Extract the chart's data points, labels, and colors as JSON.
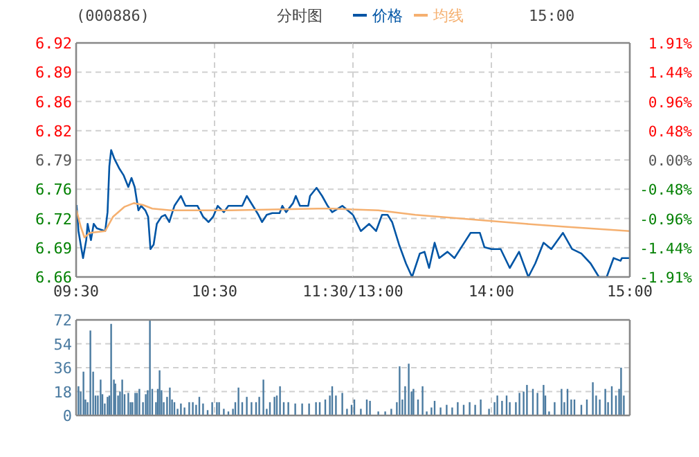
{
  "chart_data": [
    {
      "type": "line",
      "title": "(000886)",
      "subtitle": "分时图",
      "annotations": [
        "15:00"
      ],
      "legend": "top",
      "grid": true,
      "xlim": [
        9.5,
        11.5
      ],
      "xticks": [
        {
          "value": 9.5,
          "label": "09:30"
        },
        {
          "value": 10.5,
          "label": "10:30"
        },
        {
          "value": 11.5,
          "label": "11:30/13:00"
        }
      ],
      "ylim": [
        6.66,
        6.92
      ],
      "yticks": [
        {
          "value": 6.66,
          "label": "6.66"
        },
        {
          "value": 6.6925,
          "label": "6.69"
        },
        {
          "value": 6.725,
          "label": "6.72"
        },
        {
          "value": 6.7575,
          "label": "6.76"
        },
        {
          "value": 6.79,
          "label": "6.79"
        },
        {
          "value": 6.8225,
          "label": "6.82"
        },
        {
          "value": 6.855,
          "label": "6.86"
        },
        {
          "value": 6.8875,
          "label": "6.89"
        },
        {
          "value": 6.92,
          "label": "6.92"
        }
      ],
      "series": [
        {
          "name": "价格",
          "color": "#0055a5",
          "x": [
            9.503,
            9.517,
            9.533,
            9.55,
            9.573,
            9.583,
            9.607,
            9.627,
            9.65,
            9.71,
            9.727,
            9.74,
            9.753,
            9.777,
            9.81,
            9.843,
            9.877,
            9.9,
            9.923,
            9.95,
            9.97,
            10,
            10.02,
            10.037,
            10.06,
            10.083,
            10.117,
            10.143,
            10.173,
            10.21,
            10.257,
            10.29,
            10.377,
            10.417,
            10.457,
            10.49,
            10.523,
            10.567,
            10.6,
            10.7,
            10.733,
            10.777,
            10.817,
            10.843,
            10.877,
            10.917,
            10.97,
            10.99,
            11.017,
            11.067,
            11.087,
            11.117,
            11.177,
            11.19,
            11.237,
            11.277,
            11.317,
            11.35,
            11.423,
            11.5
          ],
          "values": [
            6.74,
            6.711,
            6.696,
            6.681,
            6.701,
            6.719,
            6.701,
            6.719,
            6.714,
            6.711,
            6.732,
            6.783,
            6.801,
            6.791,
            6.781,
            6.773,
            6.76,
            6.77,
            6.76,
            6.734,
            6.739,
            6.734,
            6.727,
            6.691,
            6.696,
            6.719,
            6.727,
            6.729,
            6.721,
            6.739,
            6.75,
            6.739,
            6.739,
            6.727,
            6.721,
            6.727,
            6.739,
            6.732,
            6.739,
            6.739,
            6.75,
            6.739,
            6.729,
            6.721,
            6.729,
            6.731,
            6.731,
            6.739,
            6.732,
            6.742,
            6.75,
            6.739,
            6.739,
            6.75,
            6.759,
            6.75,
            6.739,
            6.732,
            6.739,
            6.729
          ]
        },
        {
          "name": "均线",
          "color": "#f5b070",
          "x": [
            9.503,
            9.533,
            9.56,
            9.6,
            9.71,
            9.767,
            9.85,
            9.917,
            9.983,
            10.05,
            10.183,
            10.25,
            10.617,
            11.25,
            11.35,
            11.5
          ],
          "values": [
            6.734,
            6.716,
            6.704,
            6.709,
            6.711,
            6.727,
            6.738,
            6.742,
            6.74,
            6.736,
            6.734,
            6.734,
            6.734,
            6.736,
            6.736,
            6.735
          ]
        }
      ]
    },
    {
      "type": "line",
      "grid": true,
      "tick_labels": "x",
      "xlim": [
        13,
        15
      ],
      "xticks": [
        {
          "value": 13,
          "label": null
        },
        {
          "value": 14,
          "label": "14:00"
        },
        {
          "value": 15,
          "label": "15:00"
        }
      ],
      "ylim": [
        6.66,
        6.92
      ],
      "yticks": [
        {
          "value": 6.66,
          "label": null
        },
        {
          "value": 6.6925,
          "label": null
        },
        {
          "value": 6.725,
          "label": null
        },
        {
          "value": 6.7575,
          "label": null
        },
        {
          "value": 6.79,
          "label": null
        },
        {
          "value": 6.8225,
          "label": null
        },
        {
          "value": 6.855,
          "label": null
        },
        {
          "value": 6.8875,
          "label": null
        },
        {
          "value": 6.92,
          "label": null
        }
      ],
      "y2lim": [
        -1.914,
        1.914
      ],
      "y2ticks": [
        {
          "value": -1.914,
          "label": "-1.91%"
        },
        {
          "value": -1.4355,
          "label": "-1.44%"
        },
        {
          "value": -0.957,
          "label": "-0.96%"
        },
        {
          "value": -0.4785,
          "label": "-0.48%"
        },
        {
          "value": 0,
          "label": "0.00%"
        },
        {
          "value": 0.4785,
          "label": "0.48%"
        },
        {
          "value": 0.957,
          "label": "0.96%"
        },
        {
          "value": 1.4355,
          "label": "1.44%"
        },
        {
          "value": 1.914,
          "label": "1.91%"
        }
      ],
      "series": [
        {
          "color": "#0055a5",
          "x": [
            13,
            13.057,
            13.117,
            13.167,
            13.21,
            13.25,
            13.283,
            13.333,
            13.383,
            13.427,
            13.483,
            13.517,
            13.55,
            13.59,
            13.623,
            13.683,
            13.733,
            13.783,
            13.85,
            13.917,
            13.95,
            14,
            14.067,
            14.133,
            14.2,
            14.267,
            14.317,
            14.377,
            14.433,
            14.517,
            14.583,
            14.65,
            14.717,
            14.777,
            14.833,
            14.883,
            14.933,
            14.943,
            15
          ],
          "values": [
            6.729,
            6.711,
            6.719,
            6.711,
            6.729,
            6.729,
            6.721,
            6.696,
            6.675,
            6.66,
            6.686,
            6.688,
            6.67,
            6.698,
            6.681,
            6.688,
            6.681,
            6.693,
            6.709,
            6.709,
            6.693,
            6.691,
            6.691,
            6.67,
            6.688,
            6.66,
            6.675,
            6.698,
            6.691,
            6.709,
            6.691,
            6.686,
            6.675,
            6.66,
            6.66,
            6.681,
            6.678,
            6.681,
            6.681
          ]
        },
        {
          "color": "#f5b070",
          "x": [
            13,
            13.183,
            13.45,
            13.85,
            14.25,
            14.517,
            15
          ],
          "values": [
            6.735,
            6.734,
            6.729,
            6.724,
            6.719,
            6.716,
            6.711
          ]
        }
      ]
    },
    {
      "type": "bar",
      "grid": true,
      "tick_labels": "y",
      "xlim": [
        9.5,
        11.5
      ],
      "xticks": [
        {
          "value": 9.5,
          "label": null
        },
        {
          "value": 10.5,
          "label": null
        },
        {
          "value": 11.5,
          "label": null
        }
      ],
      "ylim": [
        0,
        72
      ],
      "yticks": [
        0,
        18,
        36,
        54,
        72
      ],
      "series": [
        {
          "color": "#4a7aa0",
          "x": [
            9.517,
            9.533,
            9.553,
            9.567,
            9.583,
            9.603,
            9.623,
            9.64,
            9.657,
            9.677,
            9.69,
            9.707,
            9.727,
            9.74,
            9.753,
            9.773,
            9.783,
            9.803,
            9.817,
            9.833,
            9.85,
            9.877,
            9.893,
            9.907,
            9.927,
            9.94,
            9.957,
            9.983,
            10.003,
            10.017,
            10.033,
            10.05,
            10.077,
            10.09,
            10.103,
            10.117,
            10.133,
            10.157,
            10.177,
            10.193,
            10.21,
            10.233,
            10.257,
            10.283,
            10.317,
            10.343,
            10.367,
            10.39,
            10.417,
            10.45,
            10.483,
            10.517,
            10.533,
            10.567,
            10.6,
            10.633,
            10.65,
            10.673,
            10.7,
            10.733,
            10.767,
            10.8,
            10.823,
            10.853,
            10.877,
            10.9,
            10.933,
            10.95,
            10.973,
            11,
            11.033,
            11.083,
            11.133,
            11.183,
            11.233,
            11.26,
            11.3,
            11.333,
            11.35,
            11.377,
            11.423,
            11.457,
            11.49
          ],
          "values": [
            22,
            18,
            33,
            12,
            10,
            64,
            33,
            15,
            15,
            27,
            16,
            9,
            14,
            15,
            69,
            27,
            24,
            15,
            18,
            27,
            16,
            17,
            10,
            10,
            17,
            17,
            20,
            10,
            16,
            19,
            72,
            20,
            10,
            20,
            34,
            19,
            10,
            14,
            21,
            12,
            10,
            5,
            9,
            6,
            10,
            10,
            8,
            14,
            9,
            4,
            10,
            10,
            10,
            5,
            3,
            5,
            10,
            21,
            10,
            14,
            10,
            10,
            14,
            27,
            5,
            10,
            14,
            15,
            22,
            10,
            10,
            9,
            9,
            9,
            10,
            10,
            12,
            15,
            22,
            15,
            17,
            5,
            8
          ]
        }
      ]
    },
    {
      "type": "bar",
      "grid": true,
      "tick_labels": false,
      "xlim": [
        13,
        15
      ],
      "xticks": [
        {
          "value": 13,
          "label": null
        },
        {
          "value": 14,
          "label": null
        },
        {
          "value": 15,
          "label": null
        }
      ],
      "ylim": [
        0,
        72
      ],
      "yticks": [
        0,
        18,
        36,
        54,
        72
      ],
      "series": [
        {
          "color": "#4a7aa0",
          "x": [
            13.01,
            13.057,
            13.1,
            13.123,
            13.183,
            13.233,
            13.277,
            13.317,
            13.337,
            13.357,
            13.377,
            13.403,
            13.423,
            13.437,
            13.47,
            13.503,
            13.533,
            13.567,
            13.59,
            13.633,
            13.677,
            13.717,
            13.757,
            13.8,
            13.843,
            13.883,
            13.923,
            13.983,
            14.023,
            14.043,
            14.077,
            14.11,
            14.133,
            14.177,
            14.203,
            14.233,
            14.257,
            14.3,
            14.333,
            14.377,
            14.39,
            14.417,
            14.457,
            14.507,
            14.527,
            14.55,
            14.577,
            14.6,
            14.65,
            14.69,
            14.733,
            14.757,
            14.783,
            14.823,
            14.843,
            14.87,
            14.9,
            14.923,
            14.937,
            14.957
          ],
          "values": [
            12,
            5,
            12,
            11,
            3,
            3,
            5,
            10,
            37,
            12,
            22,
            39,
            18,
            20,
            12,
            22,
            3,
            6,
            11,
            6,
            8,
            6,
            10,
            8,
            10,
            8,
            12,
            5,
            10,
            15,
            11,
            15,
            10,
            10,
            17,
            18,
            23,
            20,
            17,
            23,
            15,
            3,
            10,
            20,
            10,
            20,
            12,
            12,
            8,
            12,
            25,
            15,
            12,
            20,
            10,
            22,
            15,
            20,
            36,
            15
          ]
        }
      ]
    }
  ]
}
